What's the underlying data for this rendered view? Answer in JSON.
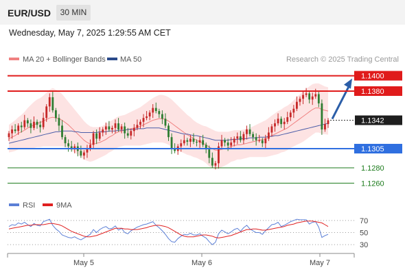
{
  "header": {
    "pair": "EUR/USD",
    "timeframe": "30 MIN",
    "timestamp": "Wednesday, May 7, 2025 1:29:55 AM CET"
  },
  "legend": {
    "ma20_label": "MA 20 + Bollinger Bands",
    "ma50_label": "MA 50",
    "credit": "Research © 2025 Trading Central",
    "rsi_label": "RSI",
    "rsi_ma_label": "9MA"
  },
  "colors": {
    "resistance": "#e01b1b",
    "support": "#2f6fe0",
    "target": "#1a7a1a",
    "bollinger_fill": "#fde3e3",
    "ma20": "#f08080",
    "ma50": "#4a5ca8",
    "candle_up": "#c62828",
    "candle_down": "#2e7d32",
    "rsi": "#5b7fd6",
    "rsi_ma": "#e02020",
    "arrow": "#2b5ea8"
  },
  "chart_data": [
    {
      "type": "candlestick",
      "title": "EUR/USD",
      "ylim": [
        1.1247,
        1.1413
      ],
      "x_ticks": [
        "May 5",
        "May 6",
        "May 7"
      ],
      "levels": [
        {
          "kind": "resistance",
          "value": 1.14,
          "label": "1.1400"
        },
        {
          "kind": "resistance",
          "value": 1.138,
          "label": "1.1380"
        },
        {
          "kind": "current",
          "value": 1.1342,
          "label": "1.1342"
        },
        {
          "kind": "support",
          "value": 1.1305,
          "label": "1.1305"
        },
        {
          "kind": "target",
          "value": 1.128,
          "label": "1.1280"
        },
        {
          "kind": "target",
          "value": 1.126,
          "label": "1.1260"
        }
      ],
      "close": [
        1.1325,
        1.133,
        1.1328,
        1.1335,
        1.1333,
        1.1342,
        1.1338,
        1.1332,
        1.134,
        1.1336,
        1.1333,
        1.1345,
        1.136,
        1.1372,
        1.1355,
        1.1345,
        1.1335,
        1.132,
        1.1312,
        1.1308,
        1.1304,
        1.1308,
        1.1302,
        1.1296,
        1.13,
        1.1305,
        1.131,
        1.1325,
        1.1318,
        1.1326,
        1.133,
        1.1334,
        1.133,
        1.1332,
        1.1338,
        1.133,
        1.1334,
        1.1325,
        1.1322,
        1.1328,
        1.1332,
        1.1336,
        1.134,
        1.1345,
        1.1347,
        1.1352,
        1.1358,
        1.1354,
        1.135,
        1.1344,
        1.1335,
        1.132,
        1.1305,
        1.1302,
        1.1308,
        1.1312,
        1.1316,
        1.1314,
        1.1318,
        1.1314,
        1.1313,
        1.1316,
        1.131,
        1.1304,
        1.1293,
        1.1283,
        1.1286,
        1.1308,
        1.1316,
        1.1313,
        1.1309,
        1.1313,
        1.1318,
        1.1321,
        1.1316,
        1.1324,
        1.133,
        1.1324,
        1.132,
        1.1316,
        1.1316,
        1.1312,
        1.1318,
        1.1326,
        1.1334,
        1.1338,
        1.1344,
        1.1337,
        1.134,
        1.1346,
        1.1352,
        1.1357,
        1.1366,
        1.137,
        1.1375,
        1.1377,
        1.1369,
        1.1373,
        1.1376,
        1.1364,
        1.133,
        1.1337,
        1.1342
      ],
      "open": [
        1.132,
        1.1325,
        1.133,
        1.1328,
        1.1335,
        1.1333,
        1.1342,
        1.1338,
        1.1332,
        1.134,
        1.1336,
        1.1333,
        1.1345,
        1.136,
        1.1372,
        1.1355,
        1.1345,
        1.1335,
        1.132,
        1.1312,
        1.1308,
        1.1304,
        1.1308,
        1.1302,
        1.1296,
        1.13,
        1.1305,
        1.131,
        1.1325,
        1.1318,
        1.1326,
        1.133,
        1.1334,
        1.133,
        1.1332,
        1.1338,
        1.133,
        1.1334,
        1.1325,
        1.1322,
        1.1328,
        1.1332,
        1.1336,
        1.134,
        1.1345,
        1.1347,
        1.1352,
        1.1358,
        1.1354,
        1.135,
        1.1344,
        1.1335,
        1.132,
        1.1305,
        1.1302,
        1.1308,
        1.1312,
        1.1316,
        1.1314,
        1.1318,
        1.1314,
        1.1313,
        1.1316,
        1.131,
        1.1304,
        1.1293,
        1.1283,
        1.1286,
        1.1308,
        1.1316,
        1.1313,
        1.1309,
        1.1313,
        1.1318,
        1.1321,
        1.1316,
        1.1324,
        1.133,
        1.1324,
        1.132,
        1.1316,
        1.1316,
        1.1312,
        1.1318,
        1.1326,
        1.1334,
        1.1338,
        1.1344,
        1.1337,
        1.134,
        1.1346,
        1.1352,
        1.1357,
        1.1366,
        1.137,
        1.1375,
        1.1377,
        1.1369,
        1.1373,
        1.1376,
        1.1364,
        1.133,
        1.1337
      ],
      "ma20": [
        1.1318,
        1.132,
        1.1322,
        1.1325,
        1.1327,
        1.1329,
        1.1332,
        1.1334,
        1.1336,
        1.1338,
        1.1339,
        1.1341,
        1.1343,
        1.1345,
        1.1346,
        1.1345,
        1.1344,
        1.1342,
        1.1339,
        1.1336,
        1.1332,
        1.1328,
        1.1324,
        1.132,
        1.1316,
        1.1313,
        1.1311,
        1.1311,
        1.1312,
        1.1313,
        1.1315,
        1.1317,
        1.132,
        1.1322,
        1.1325,
        1.1327,
        1.1328,
        1.1329,
        1.133,
        1.1331,
        1.1332,
        1.1333,
        1.1334,
        1.1336,
        1.1338,
        1.134,
        1.1342,
        1.1343,
        1.1344,
        1.1344,
        1.1343,
        1.1341,
        1.1338,
        1.1335,
        1.1332,
        1.1329,
        1.1326,
        1.1323,
        1.1321,
        1.1318,
        1.1316,
        1.1314,
        1.1312,
        1.131,
        1.1307,
        1.1305,
        1.1303,
        1.1303,
        1.1304,
        1.1305,
        1.1306,
        1.1308,
        1.1309,
        1.131,
        1.131,
        1.1311,
        1.1312,
        1.1313,
        1.1314,
        1.1315,
        1.1316,
        1.1317,
        1.1318,
        1.132,
        1.1322,
        1.1324,
        1.1326,
        1.1328,
        1.133,
        1.1332,
        1.1335,
        1.1338,
        1.1341,
        1.1344,
        1.1347,
        1.135,
        1.1353,
        1.1356,
        1.1358,
        1.1358,
        1.1356,
        1.1355,
        1.1354
      ],
      "ma50": [
        1.1312,
        1.1313,
        1.1314,
        1.1315,
        1.1316,
        1.1317,
        1.1318,
        1.1319,
        1.132,
        1.1321,
        1.1322,
        1.1323,
        1.1324,
        1.1325,
        1.1326,
        1.1327,
        1.1327,
        1.1328,
        1.1328,
        1.1328,
        1.1328,
        1.1327,
        1.1327,
        1.1326,
        1.1326,
        1.1326,
        1.1326,
        1.1326,
        1.1326,
        1.1327,
        1.1327,
        1.1327,
        1.1328,
        1.1328,
        1.1328,
        1.1329,
        1.1329,
        1.1329,
        1.133,
        1.133,
        1.133,
        1.1331,
        1.1331,
        1.1331,
        1.1332,
        1.1332,
        1.1332,
        1.1332,
        1.1332,
        1.1331,
        1.133,
        1.1329,
        1.1328,
        1.1327,
        1.1326,
        1.1325,
        1.1324,
        1.1324,
        1.1323,
        1.1322,
        1.1322,
        1.1321,
        1.132,
        1.1319,
        1.1318,
        1.1317,
        1.1316,
        1.1316,
        1.1316,
        1.1316,
        1.1316,
        1.1317,
        1.1317,
        1.1317,
        1.1318,
        1.1318,
        1.1318,
        1.1319,
        1.1319,
        1.1319,
        1.132,
        1.132,
        1.132,
        1.1321,
        1.1321,
        1.1322,
        1.1322,
        1.1323,
        1.1324,
        1.1325,
        1.1326,
        1.1327,
        1.1328,
        1.1329,
        1.133,
        1.1331,
        1.1332,
        1.1333,
        1.1334,
        1.1335,
        1.1336,
        1.1337,
        1.1338
      ],
      "bb_width": [
        0.0018,
        0.0019,
        0.002,
        0.0021,
        0.0022,
        0.0024,
        0.0026,
        0.0028,
        0.003,
        0.0031,
        0.0032,
        0.0033,
        0.0035,
        0.0037,
        0.0038,
        0.0037,
        0.0036,
        0.0034,
        0.0032,
        0.003,
        0.0029,
        0.0028,
        0.0027,
        0.0026,
        0.0025,
        0.0024,
        0.0023,
        0.0022,
        0.0021,
        0.002,
        0.002,
        0.002,
        0.002,
        0.002,
        0.002,
        0.002,
        0.002,
        0.002,
        0.0021,
        0.0022,
        0.0023,
        0.0024,
        0.0025,
        0.0026,
        0.0027,
        0.0028,
        0.0029,
        0.003,
        0.0031,
        0.0031,
        0.0031,
        0.0031,
        0.0031,
        0.003,
        0.0029,
        0.0028,
        0.0027,
        0.0026,
        0.0025,
        0.0024,
        0.0023,
        0.0023,
        0.0023,
        0.0024,
        0.0025,
        0.0025,
        0.0025,
        0.0024,
        0.0023,
        0.0022,
        0.0021,
        0.002,
        0.002,
        0.0019,
        0.0019,
        0.0019,
        0.0019,
        0.0019,
        0.002,
        0.0021,
        0.0022,
        0.0023,
        0.0024,
        0.0025,
        0.0026,
        0.0027,
        0.0028,
        0.0028,
        0.0029,
        0.0029,
        0.0029,
        0.003,
        0.0031,
        0.0032,
        0.0033,
        0.0033,
        0.0033,
        0.0033,
        0.0032,
        0.0032,
        0.0032,
        0.0031,
        0.0031
      ]
    },
    {
      "type": "line",
      "title": "RSI",
      "ylim": [
        20,
        80
      ],
      "y_ticks": [
        70,
        50,
        30
      ],
      "series": [
        {
          "name": "RSI",
          "values": [
            60,
            63,
            62,
            66,
            64,
            67,
            63,
            60,
            65,
            62,
            61,
            68,
            70,
            72,
            62,
            56,
            52,
            46,
            44,
            42,
            41,
            43,
            40,
            38,
            41,
            44,
            47,
            55,
            50,
            55,
            58,
            60,
            56,
            57,
            61,
            54,
            57,
            50,
            48,
            53,
            56,
            59,
            61,
            63,
            64,
            66,
            68,
            62,
            58,
            53,
            47,
            40,
            35,
            34,
            40,
            44,
            47,
            46,
            49,
            46,
            46,
            48,
            44,
            41,
            35,
            30,
            34,
            48,
            54,
            51,
            48,
            51,
            55,
            57,
            52,
            58,
            62,
            56,
            53,
            50,
            50,
            47,
            53,
            58,
            63,
            64,
            67,
            60,
            62,
            65,
            68,
            70,
            72,
            71,
            71,
            71,
            64,
            67,
            68,
            59,
            42,
            45,
            47
          ]
        },
        {
          "name": "9MA",
          "values": [
            56,
            57,
            58,
            59,
            60,
            61,
            62,
            62,
            63,
            63,
            63,
            63,
            64,
            65,
            65,
            64,
            63,
            61,
            58,
            55,
            52,
            50,
            48,
            46,
            44,
            43,
            43,
            44,
            45,
            47,
            49,
            51,
            53,
            55,
            57,
            57,
            57,
            56,
            56,
            55,
            55,
            55,
            56,
            57,
            58,
            60,
            61,
            62,
            62,
            61,
            60,
            58,
            55,
            52,
            49,
            46,
            44,
            43,
            43,
            43,
            44,
            45,
            46,
            46,
            45,
            44,
            42,
            41,
            42,
            43,
            44,
            45,
            47,
            49,
            51,
            53,
            55,
            55,
            56,
            56,
            55,
            54,
            54,
            55,
            56,
            57,
            58,
            59,
            60,
            62,
            63,
            64,
            66,
            67,
            68,
            69,
            69,
            69,
            68,
            67,
            66,
            63,
            60
          ]
        }
      ]
    }
  ]
}
